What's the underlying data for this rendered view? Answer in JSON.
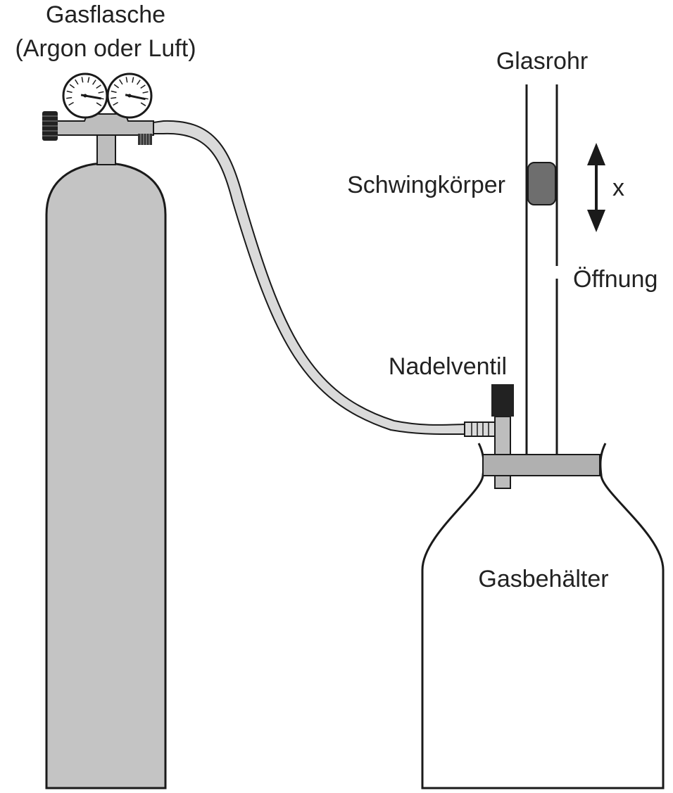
{
  "labels": {
    "cylinder_line1": "Gasflasche",
    "cylinder_line2": "(Argon oder Luft)",
    "glass_tube": "Glasrohr",
    "oscillator": "Schwingkörper",
    "displacement": "x",
    "opening": "Öffnung",
    "needle_valve": "Nadelventil",
    "container": "Gasbehälter"
  },
  "colors": {
    "outline": "#1a1a1a",
    "cylinder_fill": "#c4c4c4",
    "regulator_fill": "#bdbdbd",
    "hose_fill": "#dadada",
    "oscillator_fill": "#6e6e6e",
    "valve_knob": "#222222",
    "stopper_fill": "#b0b0b0"
  },
  "icons": {
    "gauges": "pressure-gauge-icon",
    "arrow": "double-arrow-icon"
  }
}
